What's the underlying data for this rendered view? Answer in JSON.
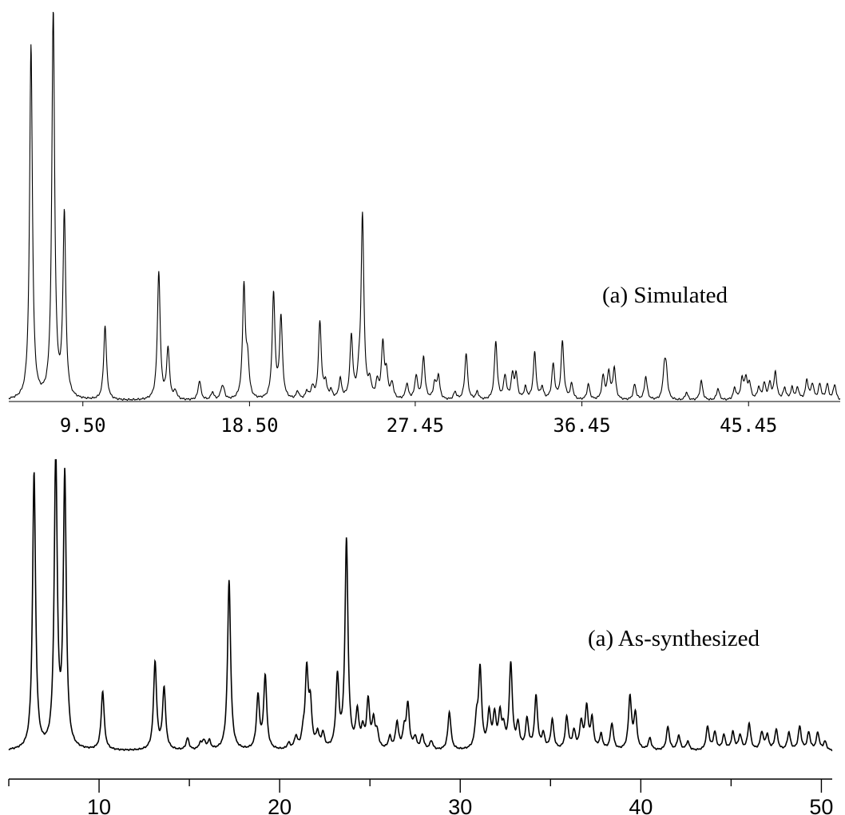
{
  "chart_data": [
    {
      "type": "line",
      "annotation": "(a) Simulated",
      "xlim": [
        5.5,
        50.4
      ],
      "ylim": [
        0,
        100
      ],
      "xticks": [
        9.5,
        18.5,
        27.45,
        36.45,
        45.45
      ],
      "xtick_labels": [
        "9.50",
        "18.50",
        "27.45",
        "36.45",
        "45.45"
      ],
      "axis": "x-only",
      "grid": false,
      "legend": "none",
      "peaks": [
        [
          6.7,
          91
        ],
        [
          7.9,
          100
        ],
        [
          8.5,
          47
        ],
        [
          10.7,
          19
        ],
        [
          13.6,
          33
        ],
        [
          14.1,
          13
        ],
        [
          14.5,
          2
        ],
        [
          15.8,
          5
        ],
        [
          16.5,
          2
        ],
        [
          17.0,
          2.5
        ],
        [
          17.1,
          2
        ],
        [
          18.2,
          29
        ],
        [
          18.4,
          9
        ],
        [
          19.8,
          27
        ],
        [
          20.2,
          21
        ],
        [
          21.1,
          2
        ],
        [
          21.6,
          2
        ],
        [
          21.9,
          3
        ],
        [
          22.3,
          20
        ],
        [
          22.6,
          4
        ],
        [
          22.9,
          2
        ],
        [
          23.4,
          5
        ],
        [
          24.0,
          16
        ],
        [
          24.4,
          4
        ],
        [
          24.6,
          47
        ],
        [
          25.0,
          4
        ],
        [
          25.4,
          4
        ],
        [
          25.7,
          14
        ],
        [
          25.9,
          6
        ],
        [
          26.2,
          4
        ],
        [
          27.0,
          4
        ],
        [
          27.5,
          6
        ],
        [
          27.9,
          11
        ],
        [
          28.5,
          4
        ],
        [
          28.7,
          6
        ],
        [
          29.6,
          2
        ],
        [
          30.2,
          12
        ],
        [
          30.8,
          2
        ],
        [
          31.8,
          15
        ],
        [
          32.3,
          6
        ],
        [
          32.7,
          6
        ],
        [
          32.9,
          6
        ],
        [
          33.4,
          3
        ],
        [
          33.9,
          12
        ],
        [
          34.3,
          3
        ],
        [
          34.9,
          9
        ],
        [
          35.4,
          15
        ],
        [
          35.9,
          4
        ],
        [
          36.8,
          4
        ],
        [
          37.6,
          6
        ],
        [
          37.9,
          7
        ],
        [
          38.2,
          8
        ],
        [
          39.3,
          4
        ],
        [
          39.9,
          6
        ],
        [
          40.9,
          7
        ],
        [
          41.0,
          7
        ],
        [
          42.1,
          2
        ],
        [
          42.9,
          5
        ],
        [
          43.8,
          3
        ],
        [
          44.7,
          3
        ],
        [
          45.1,
          5
        ],
        [
          45.3,
          5
        ],
        [
          45.5,
          4
        ],
        [
          46.0,
          3
        ],
        [
          46.3,
          4
        ],
        [
          46.6,
          4
        ],
        [
          46.9,
          7
        ],
        [
          47.4,
          3
        ],
        [
          47.8,
          3
        ],
        [
          48.1,
          3
        ],
        [
          48.6,
          5
        ],
        [
          48.9,
          4
        ],
        [
          49.3,
          4
        ],
        [
          49.7,
          4
        ],
        [
          50.1,
          4
        ]
      ]
    },
    {
      "type": "line",
      "annotation": "(a) As-synthesized",
      "xlim": [
        5.0,
        50.6
      ],
      "ylim": [
        0,
        100
      ],
      "xticks": [
        10,
        20,
        30,
        40,
        50
      ],
      "xtick_labels": [
        "10",
        "20",
        "30",
        "40",
        "50"
      ],
      "axis": "x-only",
      "grid": false,
      "legend": "none",
      "peaks": [
        [
          6.4,
          94
        ],
        [
          7.6,
          100
        ],
        [
          8.1,
          92
        ],
        [
          10.2,
          20
        ],
        [
          13.1,
          30
        ],
        [
          13.6,
          21
        ],
        [
          14.9,
          4
        ],
        [
          15.6,
          2
        ],
        [
          15.8,
          3
        ],
        [
          16.1,
          3
        ],
        [
          17.2,
          58
        ],
        [
          18.8,
          18
        ],
        [
          19.2,
          25
        ],
        [
          20.5,
          2
        ],
        [
          20.9,
          4
        ],
        [
          21.3,
          4
        ],
        [
          21.5,
          26
        ],
        [
          21.7,
          14
        ],
        [
          22.1,
          5
        ],
        [
          22.4,
          5
        ],
        [
          23.2,
          24
        ],
        [
          23.7,
          71
        ],
        [
          24.3,
          12
        ],
        [
          24.6,
          6
        ],
        [
          24.9,
          16
        ],
        [
          25.2,
          9
        ],
        [
          25.4,
          5
        ],
        [
          26.1,
          4
        ],
        [
          26.5,
          9
        ],
        [
          26.9,
          6
        ],
        [
          27.1,
          15
        ],
        [
          27.5,
          4
        ],
        [
          27.9,
          5
        ],
        [
          28.4,
          3
        ],
        [
          29.4,
          13
        ],
        [
          30.9,
          9
        ],
        [
          31.1,
          27
        ],
        [
          31.6,
          12
        ],
        [
          31.9,
          11
        ],
        [
          32.2,
          11
        ],
        [
          32.4,
          6
        ],
        [
          32.8,
          29
        ],
        [
          33.2,
          8
        ],
        [
          33.7,
          10
        ],
        [
          34.2,
          18
        ],
        [
          34.6,
          5
        ],
        [
          35.1,
          10
        ],
        [
          35.9,
          11
        ],
        [
          36.3,
          6
        ],
        [
          36.7,
          9
        ],
        [
          37.0,
          14
        ],
        [
          37.3,
          10
        ],
        [
          37.8,
          5
        ],
        [
          38.4,
          9
        ],
        [
          39.4,
          18
        ],
        [
          39.7,
          12
        ],
        [
          40.5,
          4
        ],
        [
          41.5,
          8
        ],
        [
          42.1,
          5
        ],
        [
          42.6,
          3
        ],
        [
          43.7,
          8
        ],
        [
          44.1,
          6
        ],
        [
          44.6,
          5
        ],
        [
          45.1,
          6
        ],
        [
          45.5,
          5
        ],
        [
          46.0,
          9
        ],
        [
          46.7,
          6
        ],
        [
          47.0,
          5
        ],
        [
          47.5,
          7
        ],
        [
          48.2,
          6
        ],
        [
          48.8,
          8
        ],
        [
          49.3,
          6
        ],
        [
          49.8,
          6
        ],
        [
          50.2,
          3
        ]
      ]
    }
  ]
}
